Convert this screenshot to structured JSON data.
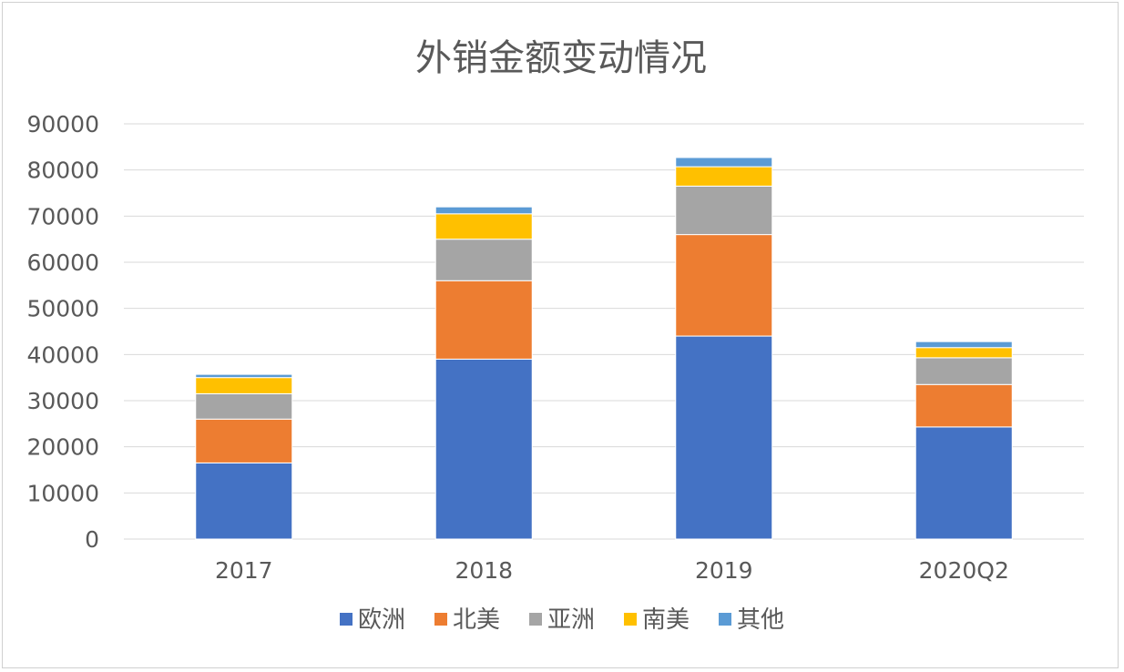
{
  "chart_data": {
    "type": "bar",
    "stacked": true,
    "title": "外销金额变动情况",
    "xlabel": "",
    "ylabel": "",
    "categories": [
      "2017",
      "2018",
      "2019",
      "2020Q2"
    ],
    "series": [
      {
        "name": "欧洲",
        "color": "#4472c4",
        "values": [
          16500,
          39000,
          44000,
          24300
        ]
      },
      {
        "name": "北美",
        "color": "#ed7d31",
        "values": [
          9500,
          17000,
          22000,
          9200
        ]
      },
      {
        "name": "亚洲",
        "color": "#a5a5a5",
        "values": [
          5500,
          9000,
          10500,
          5800
        ]
      },
      {
        "name": "南美",
        "color": "#ffc000",
        "values": [
          3500,
          5500,
          4200,
          2200
        ]
      },
      {
        "name": "其他",
        "color": "#5b9bd5",
        "values": [
          700,
          1500,
          2000,
          1300
        ]
      }
    ],
    "ylim": [
      0,
      90000
    ],
    "yticks": [
      0,
      10000,
      20000,
      30000,
      40000,
      50000,
      60000,
      70000,
      80000,
      90000
    ],
    "grid": true,
    "legend_position": "bottom"
  }
}
